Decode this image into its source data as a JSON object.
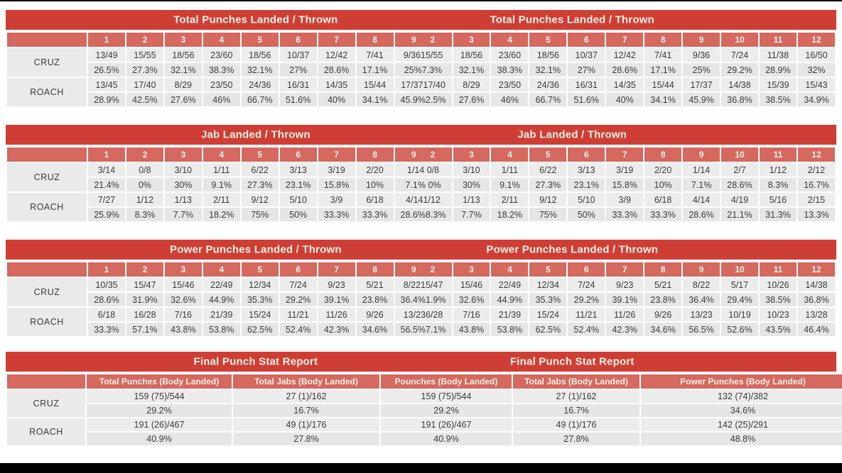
{
  "colors": {
    "title_red": "#cf3e35",
    "header_red": "#d5685f",
    "row_light": "#ececec",
    "row_dark": "#e6e6e6",
    "text": "#3b3b3b",
    "header_text": "#fbf2e6"
  },
  "fighters": [
    "CRUZ",
    "ROACH"
  ],
  "round_tables": [
    {
      "title_left": "Total Punches Landed / Thrown",
      "title_right": "Total Punches Landed / Thrown",
      "headers": [
        "",
        "1",
        "2",
        "3",
        "4",
        "5",
        "6",
        "7",
        "8",
        "9      2",
        "3",
        "4",
        "5",
        "6",
        "7",
        "8",
        "9",
        "10",
        "11",
        "12"
      ],
      "fighter_rows": [
        {
          "label": "CRUZ",
          "landed": [
            "13/49",
            "15/55",
            "18/56",
            "23/60",
            "18/56",
            "10/37",
            "12/42",
            "7/41",
            "9/3615/55",
            "18/56",
            "23/60",
            "18/56",
            "10/37",
            "12/42",
            "7/41",
            "9/36",
            "7/24",
            "11/38",
            "16/50"
          ],
          "pct": [
            "26.5%",
            "27.3%",
            "32.1%",
            "38.3%",
            "32.1%",
            "27%",
            "28.6%",
            "17.1%",
            "25%7.3%",
            "32.1%",
            "38.3%",
            "32.1%",
            "27%",
            "28.6%",
            "17.1%",
            "25%",
            "29.2%",
            "28.9%",
            "32%"
          ]
        },
        {
          "label": "ROACH",
          "landed": [
            "13/45",
            "17/40",
            "8/29",
            "23/50",
            "24/36",
            "16/31",
            "14/35",
            "15/44",
            "17/3717/40",
            "8/29",
            "23/50",
            "24/36",
            "16/31",
            "14/35",
            "15/44",
            "17/37",
            "14/38",
            "15/39",
            "15/43"
          ],
          "pct": [
            "28.9%",
            "42.5%",
            "27.6%",
            "46%",
            "66.7%",
            "51.6%",
            "40%",
            "34.1%",
            "45.9%2.5%",
            "27.6%",
            "46%",
            "66.7%",
            "51.6%",
            "40%",
            "34.1%",
            "45.9%",
            "36.8%",
            "38.5%",
            "34.9%"
          ]
        }
      ]
    },
    {
      "title_left": "Jab Landed / Thrown",
      "title_right": "Jab Landed / Thrown",
      "headers": [
        "",
        "1",
        "2",
        "3",
        "4",
        "5",
        "6",
        "7",
        "8",
        "9      2",
        "3",
        "4",
        "5",
        "6",
        "7",
        "8",
        "9",
        "10",
        "11",
        "12"
      ],
      "fighter_rows": [
        {
          "label": "CRUZ",
          "landed": [
            "3/14",
            "0/8",
            "3/10",
            "1/11",
            "6/22",
            "3/13",
            "3/19",
            "2/20",
            "1/14 0/8",
            "3/10",
            "1/11",
            "6/22",
            "3/13",
            "3/19",
            "2/20",
            "1/14",
            "2/7",
            "1/12",
            "2/12"
          ],
          "pct": [
            "21.4%",
            "0%",
            "30%",
            "9.1%",
            "27.3%",
            "23.1%",
            "15.8%",
            "10%",
            "7.1% 0%",
            "30%",
            "9.1%",
            "27.3%",
            "23.1%",
            "15.8%",
            "10%",
            "7.1%",
            "28.6%",
            "8.3%",
            "16.7%"
          ]
        },
        {
          "label": "ROACH",
          "landed": [
            "7/27",
            "1/12",
            "1/13",
            "2/11",
            "9/12",
            "5/10",
            "3/9",
            "6/18",
            "4/141/12",
            "1/13",
            "2/11",
            "9/12",
            "5/10",
            "3/9",
            "6/18",
            "4/14",
            "4/19",
            "5/16",
            "2/15"
          ],
          "pct": [
            "25.9%",
            "8.3%",
            "7.7%",
            "18.2%",
            "75%",
            "50%",
            "33.3%",
            "33.3%",
            "28.6%8.3%",
            "7.7%",
            "18.2%",
            "75%",
            "50%",
            "33.3%",
            "33.3%",
            "28.6%",
            "21.1%",
            "31.3%",
            "13.3%"
          ]
        }
      ]
    },
    {
      "title_left": "Power Punches Landed / Thrown",
      "title_right": "Power Punches Landed / Thrown",
      "headers": [
        "",
        "1",
        "2",
        "3",
        "4",
        "5",
        "6",
        "7",
        "8",
        "9      2",
        "3",
        "4",
        "5",
        "6",
        "7",
        "8",
        "9",
        "10",
        "11",
        "12"
      ],
      "fighter_rows": [
        {
          "label": "CRUZ",
          "landed": [
            "10/35",
            "15/47",
            "15/46",
            "22/49",
            "12/34",
            "7/24",
            "9/23",
            "5/21",
            "8/2215/47",
            "15/46",
            "22/49",
            "12/34",
            "7/24",
            "9/23",
            "5/21",
            "8/22",
            "5/17",
            "10/26",
            "14/38"
          ],
          "pct": [
            "28.6%",
            "31.9%",
            "32.6%",
            "44.9%",
            "35.3%",
            "29.2%",
            "39.1%",
            "23.8%",
            "36.4%1.9%",
            "32.6%",
            "44.9%",
            "35.3%",
            "29.2%",
            "39.1%",
            "23.8%",
            "36.4%",
            "29.4%",
            "38.5%",
            "36.8%"
          ]
        },
        {
          "label": "ROACH",
          "landed": [
            "6/18",
            "16/28",
            "7/16",
            "21/39",
            "15/24",
            "11/21",
            "11/26",
            "9/26",
            "13/236/28",
            "7/16",
            "21/39",
            "15/24",
            "11/21",
            "11/26",
            "9/26",
            "13/23",
            "10/19",
            "10/23",
            "13/28"
          ],
          "pct": [
            "33.3%",
            "57.1%",
            "43.8%",
            "53.8%",
            "62.5%",
            "52.4%",
            "42.3%",
            "34.6%",
            "56.5%7.1%",
            "43.8%",
            "53.8%",
            "62.5%",
            "52.4%",
            "42.3%",
            "34.6%",
            "56.5%",
            "52.6%",
            "43.5%",
            "46.4%"
          ]
        }
      ]
    }
  ],
  "final_table": {
    "title_left": "Final Punch Stat Report",
    "title_right": "Final Punch Stat Report",
    "headers": [
      "",
      "Total Punches (Body Landed)",
      "Total Jabs (Body Landed)",
      "Pounches (Body Landed)",
      "Total Jabs (Body Landed)",
      "Power Punches (Body Landed)"
    ],
    "fighter_rows": [
      {
        "label": "CRUZ",
        "landed": [
          "159 (75)/544",
          "27 (1)/162",
          "159 (75)/544",
          "27 (1)/162",
          "132 (74)/382"
        ],
        "pct": [
          "29.2%",
          "16.7%",
          "29.2%",
          "16.7%",
          "34.6%"
        ]
      },
      {
        "label": "ROACH",
        "landed": [
          "191 (26)/467",
          "49 (1)/176",
          "191 (26)/467",
          "49 (1)/176",
          "142 (25)/291"
        ],
        "pct": [
          "40.9%",
          "27.8%",
          "40.9%",
          "27.8%",
          "48.8%"
        ]
      }
    ]
  }
}
